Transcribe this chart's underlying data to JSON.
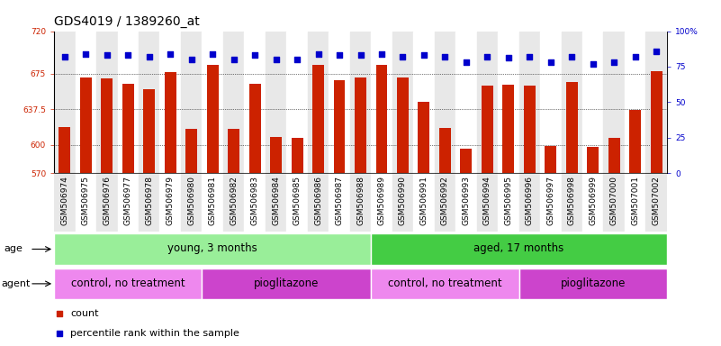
{
  "title": "GDS4019 / 1389260_at",
  "samples": [
    "GSM506974",
    "GSM506975",
    "GSM506976",
    "GSM506977",
    "GSM506978",
    "GSM506979",
    "GSM506980",
    "GSM506981",
    "GSM506982",
    "GSM506983",
    "GSM506984",
    "GSM506985",
    "GSM506986",
    "GSM506987",
    "GSM506988",
    "GSM506989",
    "GSM506990",
    "GSM506991",
    "GSM506992",
    "GSM506993",
    "GSM506994",
    "GSM506995",
    "GSM506996",
    "GSM506997",
    "GSM506998",
    "GSM506999",
    "GSM507000",
    "GSM507001",
    "GSM507002"
  ],
  "counts": [
    619,
    671,
    670,
    664,
    659,
    677,
    617,
    684,
    617,
    664,
    608,
    607,
    684,
    668,
    671,
    684,
    671,
    645,
    618,
    596,
    662,
    663,
    662,
    599,
    666,
    598,
    607,
    637,
    678
  ],
  "percentile_ranks": [
    82,
    84,
    83,
    83,
    82,
    84,
    80,
    84,
    80,
    83,
    80,
    80,
    84,
    83,
    83,
    84,
    82,
    83,
    82,
    78,
    82,
    81,
    82,
    78,
    82,
    77,
    78,
    82,
    86
  ],
  "ymin": 570,
  "ymax": 720,
  "yticks": [
    570,
    600,
    637.5,
    675,
    720
  ],
  "ytick_labels": [
    "570",
    "600",
    "637.5",
    "675",
    "720"
  ],
  "right_yticks": [
    0,
    25,
    50,
    75,
    100
  ],
  "right_ytick_labels": [
    "0",
    "25",
    "50",
    "75",
    "100%"
  ],
  "bar_color": "#cc2200",
  "dot_color": "#0000cc",
  "bar_width": 0.55,
  "age_groups": [
    {
      "label": "young, 3 months",
      "start": 0,
      "end": 15,
      "color": "#99ee99"
    },
    {
      "label": "aged, 17 months",
      "start": 15,
      "end": 29,
      "color": "#44cc44"
    }
  ],
  "agent_groups": [
    {
      "label": "control, no treatment",
      "start": 0,
      "end": 7,
      "color": "#ee88ee"
    },
    {
      "label": "pioglitazone",
      "start": 7,
      "end": 15,
      "color": "#cc44cc"
    },
    {
      "label": "control, no treatment",
      "start": 15,
      "end": 22,
      "color": "#ee88ee"
    },
    {
      "label": "pioglitazone",
      "start": 22,
      "end": 29,
      "color": "#cc44cc"
    }
  ],
  "legend_items": [
    {
      "label": "count",
      "color": "#cc2200"
    },
    {
      "label": "percentile rank within the sample",
      "color": "#0000cc"
    }
  ],
  "bg_colors": [
    "#e8e8e8",
    "#ffffff"
  ],
  "title_fontsize": 10,
  "tick_fontsize": 6.5,
  "label_fontsize": 8,
  "ann_fontsize": 8.5,
  "legend_fontsize": 8,
  "percentile_scale_min": 0,
  "percentile_scale_max": 100
}
